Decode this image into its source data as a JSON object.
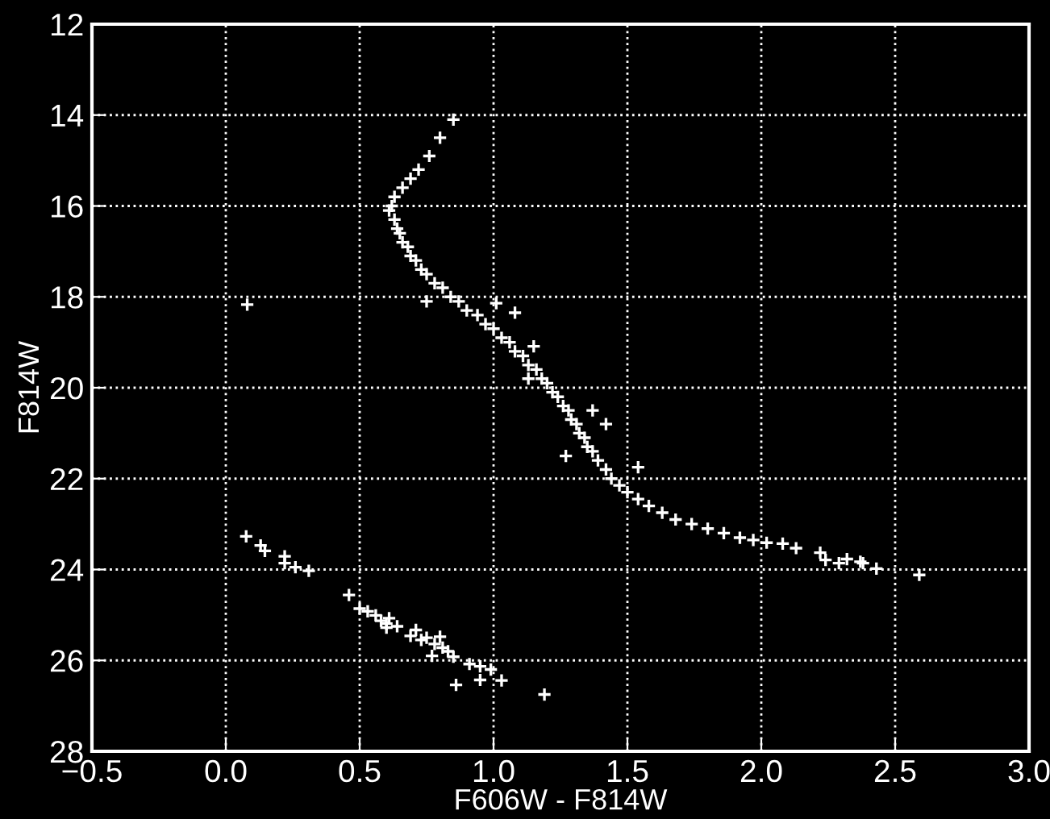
{
  "chart_data": {
    "type": "scatter",
    "xlabel": "F606W - F814W",
    "ylabel": "F814W",
    "xlim": [
      -0.5,
      3.0
    ],
    "ylim": [
      28,
      12
    ],
    "xticks": [
      {
        "value": -0.5,
        "label": "−0.5"
      },
      {
        "value": 0,
        "label": "0.0"
      },
      {
        "value": 0.5,
        "label": "0.5"
      },
      {
        "value": 1.0,
        "label": "1.0"
      },
      {
        "value": 1.5,
        "label": "1.5"
      },
      {
        "value": 2.0,
        "label": "2.0"
      },
      {
        "value": 2.5,
        "label": "2.5"
      },
      {
        "value": 3.0,
        "label": "3.0"
      }
    ],
    "yticks": [
      12,
      14,
      16,
      18,
      20,
      22,
      24,
      26,
      28
    ],
    "grid": true,
    "marker": "cross",
    "line_style": "dotted",
    "series": [
      {
        "color": "#ffffff",
        "x": [
          0.85,
          0.8,
          0.76,
          0.72,
          0.69,
          0.66,
          0.63,
          0.62,
          0.61,
          0.63,
          0.64,
          0.65,
          0.66,
          0.68,
          0.69,
          0.71,
          0.73,
          0.75,
          0.78,
          0.81,
          0.84,
          0.87,
          0.9,
          0.94,
          0.97,
          1.0,
          1.03,
          1.06,
          1.08,
          1.11,
          1.13,
          1.16,
          1.18,
          1.2,
          1.22,
          1.24,
          1.26,
          1.28,
          1.29,
          1.31,
          1.32,
          1.34,
          1.35,
          1.37,
          1.39,
          1.42,
          1.44,
          1.47,
          1.5,
          1.54,
          1.58,
          1.63,
          1.68,
          1.74,
          1.8,
          1.86,
          1.92,
          1.97,
          2.02,
          2.08,
          2.13,
          2.22,
          2.24,
          2.29,
          2.32,
          2.37,
          2.38,
          2.43,
          2.59,
          0.08,
          0.75,
          1.01,
          1.08,
          1.15,
          1.13,
          1.37,
          1.42,
          1.27,
          1.54,
          0.076,
          0.13,
          0.146,
          0.22,
          0.22,
          0.26,
          0.31,
          0.46,
          0.5,
          0.53,
          0.56,
          0.58,
          0.6,
          0.61,
          0.6,
          0.64,
          0.69,
          0.71,
          0.73,
          0.75,
          0.77,
          0.78,
          0.8,
          0.81,
          0.83,
          0.85,
          0.86,
          0.91,
          0.95,
          0.95,
          0.99,
          1.03,
          1.19
        ],
        "values": [
          14.1,
          14.5,
          14.9,
          15.2,
          15.4,
          15.6,
          15.8,
          16.0,
          16.1,
          16.3,
          16.5,
          16.6,
          16.8,
          16.9,
          17.1,
          17.2,
          17.4,
          17.5,
          17.7,
          17.8,
          18.0,
          18.1,
          18.3,
          18.4,
          18.6,
          18.7,
          18.9,
          19.0,
          19.2,
          19.3,
          19.5,
          19.6,
          19.8,
          19.9,
          20.1,
          20.2,
          20.4,
          20.5,
          20.7,
          20.8,
          21.0,
          21.1,
          21.3,
          21.4,
          21.6,
          21.8,
          22.0,
          22.15,
          22.3,
          22.45,
          22.6,
          22.75,
          22.9,
          23.0,
          23.1,
          23.2,
          23.3,
          23.35,
          23.41,
          23.43,
          23.53,
          23.63,
          23.79,
          23.86,
          23.77,
          23.83,
          23.86,
          23.98,
          24.12,
          18.17,
          18.1,
          18.14,
          18.35,
          19.09,
          19.8,
          20.5,
          20.8,
          21.5,
          21.75,
          23.27,
          23.47,
          23.59,
          23.71,
          23.86,
          23.95,
          24.03,
          24.56,
          24.86,
          24.92,
          25.01,
          25.13,
          25.19,
          25.07,
          25.28,
          25.25,
          25.46,
          25.33,
          25.55,
          25.5,
          25.9,
          25.64,
          25.48,
          25.72,
          25.8,
          25.92,
          26.54,
          26.08,
          26.13,
          26.43,
          26.2,
          26.44,
          26.75
        ]
      }
    ]
  }
}
